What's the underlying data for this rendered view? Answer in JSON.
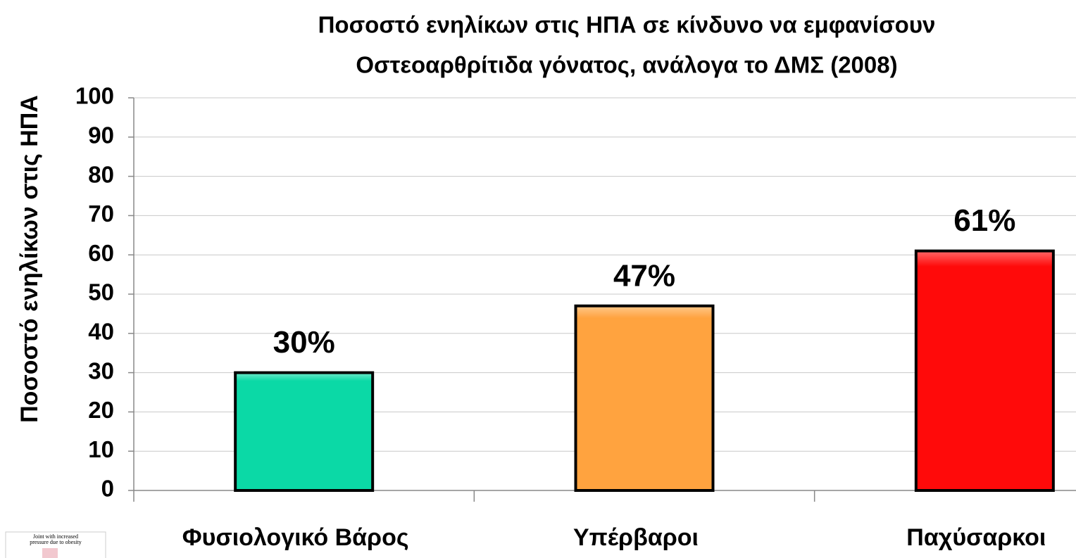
{
  "chart_data": {
    "type": "bar",
    "title": [
      "Ποσοστό ενηλίκων στις ΗΠΑ σε κίνδυνο να εμφανίσουν",
      "Οστεοαρθρίτιδα γόνατος, ανάλογα το ΔΜΣ (2008)"
    ],
    "y_label": "Ποσοστό ενηλίκων στις ΗΠΑ",
    "categories": [
      "Φυσιολογικό Βάρος",
      "Υπέρβαροι",
      "Παχύσαρκοι"
    ],
    "values": [
      30,
      47,
      61
    ],
    "value_labels": [
      "30%",
      "47%",
      "61%"
    ],
    "colors": [
      "#0bd9a6",
      "#ffa33f",
      "#ff0a0a"
    ],
    "ylim": [
      0,
      100
    ],
    "yticks": [
      0,
      10,
      20,
      30,
      40,
      50,
      60,
      70,
      80,
      90,
      100
    ],
    "grid": true
  },
  "inset": {
    "caption": [
      "Joint with increased",
      "pressure due to obesity"
    ]
  }
}
